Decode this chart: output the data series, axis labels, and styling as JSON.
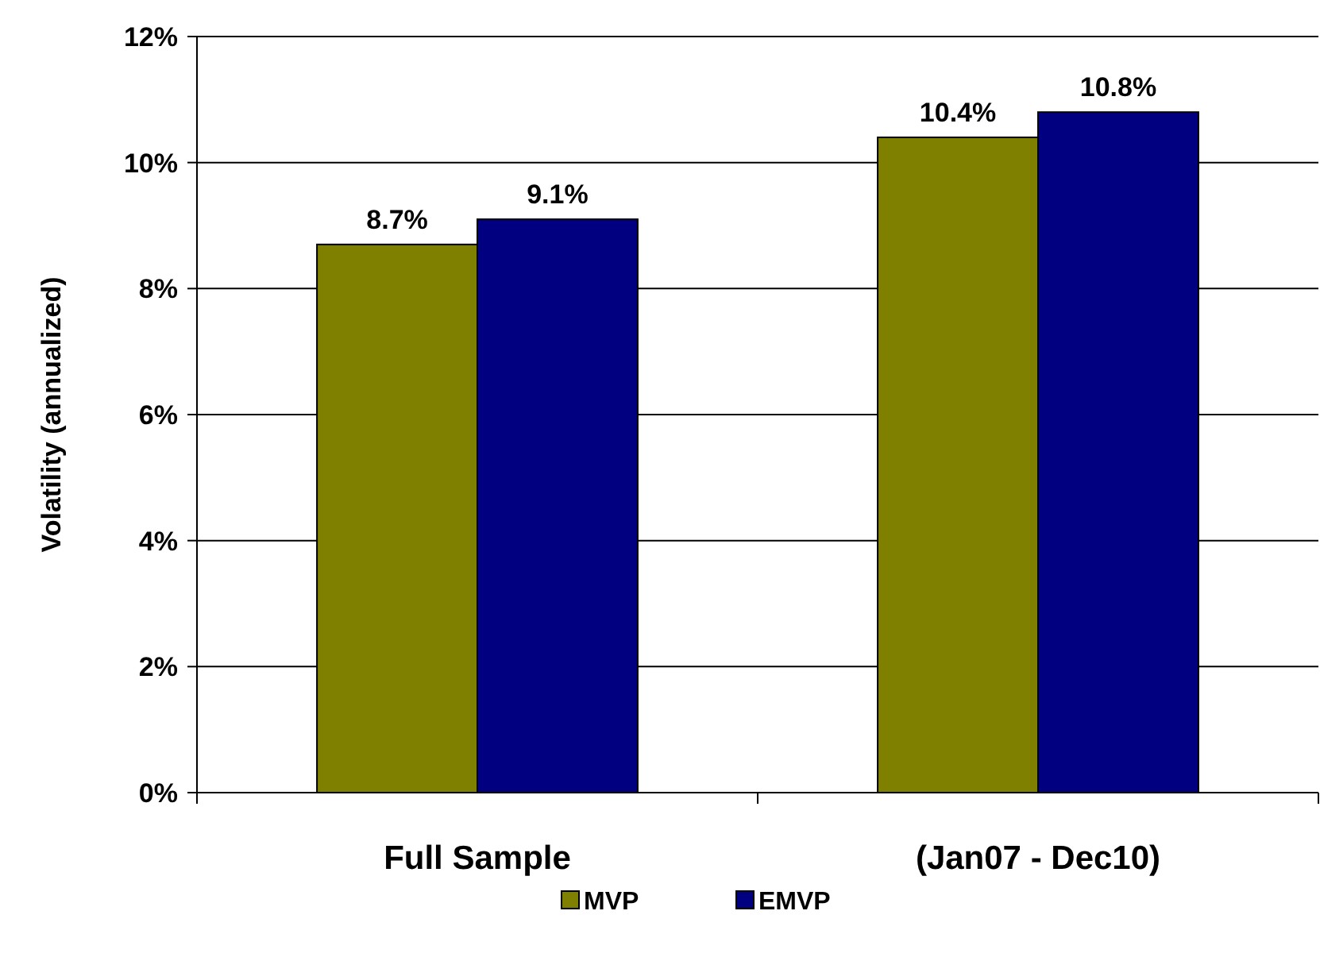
{
  "chart_data": {
    "type": "bar",
    "ylabel": "Volatility (annualized)",
    "categories": [
      "Full Sample",
      "(Jan07 - Dec10)"
    ],
    "series": [
      {
        "name": "MVP",
        "color": "#808000",
        "values": [
          8.7,
          10.4
        ],
        "value_labels": [
          "8.7%",
          "10.4%"
        ]
      },
      {
        "name": "EMVP",
        "color": "#000080",
        "values": [
          9.1,
          10.8
        ],
        "value_labels": [
          "9.1%",
          "10.8%"
        ]
      }
    ],
    "ylim": [
      0,
      12
    ],
    "yticks": [
      {
        "value": 0,
        "label": "0%"
      },
      {
        "value": 2,
        "label": "2%"
      },
      {
        "value": 4,
        "label": "4%"
      },
      {
        "value": 6,
        "label": "6%"
      },
      {
        "value": 8,
        "label": "8%"
      },
      {
        "value": 10,
        "label": "10%"
      },
      {
        "value": 12,
        "label": "12%"
      }
    ],
    "grid": "y",
    "legend": "bottom"
  }
}
